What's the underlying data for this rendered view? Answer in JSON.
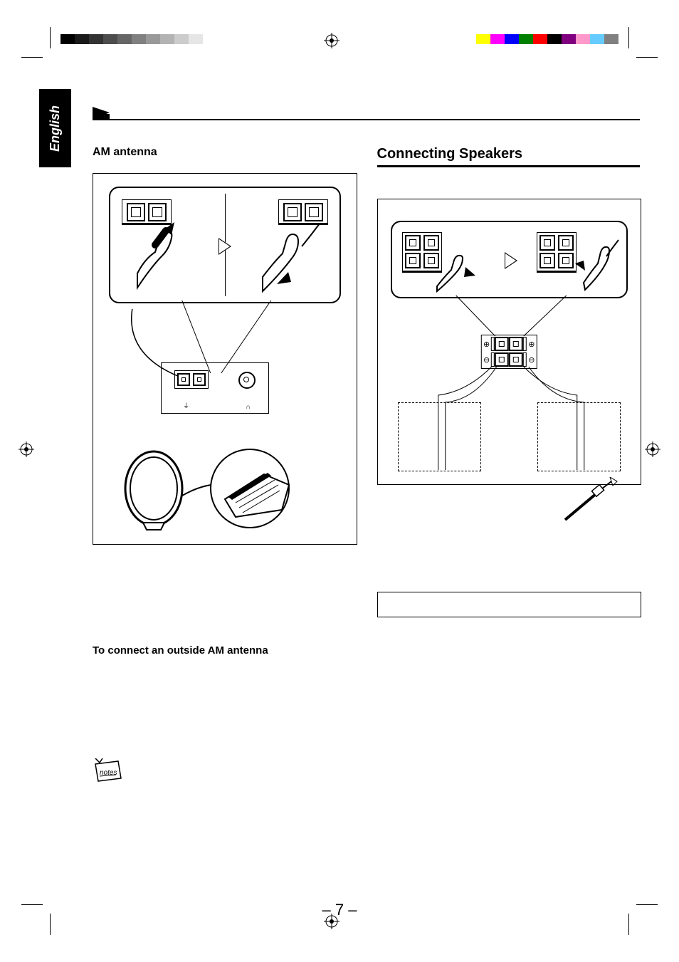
{
  "print_marks": {
    "grayscale": [
      "#000000",
      "#1a1a1a",
      "#333333",
      "#4d4d4d",
      "#666666",
      "#808080",
      "#999999",
      "#b3b3b3",
      "#cccccc",
      "#e6e6e6",
      "#ffffff"
    ],
    "colors": [
      "#ffff00",
      "#ff00ff",
      "#0000ff",
      "#008000",
      "#ff0000",
      "#000000",
      "#800080",
      "#ff99cc",
      "#66ccff",
      "#808080"
    ]
  },
  "language_tab": "English",
  "left_column": {
    "heading": "AM antenna",
    "outside_heading": "To connect an outside AM antenna",
    "notes_label": "notes"
  },
  "right_column": {
    "section_heading": "Connecting Speakers"
  },
  "page_number": "– 7 –"
}
